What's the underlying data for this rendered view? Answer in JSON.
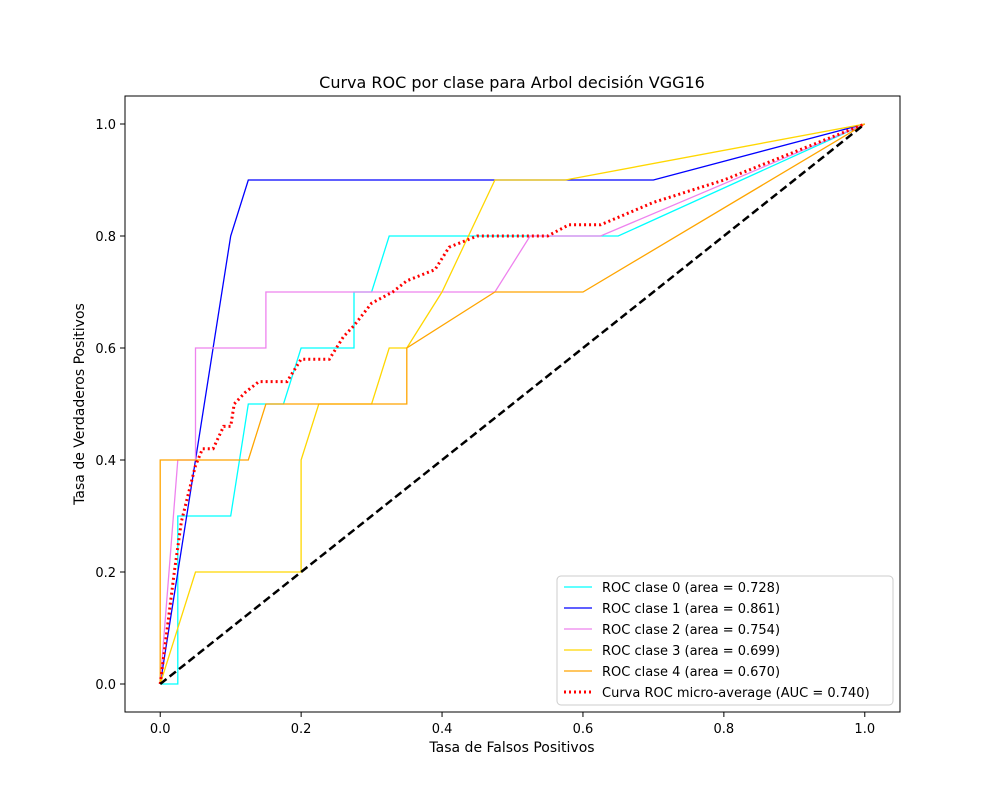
{
  "chart_data": {
    "type": "line",
    "title": "Curva ROC por clase para Arbol decisión VGG16",
    "xlabel": "Tasa de Falsos Positivos",
    "ylabel": "Tasa de Verdaderos Positivos",
    "xlim": [
      -0.05,
      1.05
    ],
    "ylim": [
      -0.05,
      1.05
    ],
    "xticks": [
      0.0,
      0.2,
      0.4,
      0.6,
      0.8,
      1.0
    ],
    "yticks": [
      0.0,
      0.2,
      0.4,
      0.6,
      0.8,
      1.0
    ],
    "xtick_labels": [
      "0.0",
      "0.2",
      "0.4",
      "0.6",
      "0.8",
      "1.0"
    ],
    "ytick_labels": [
      "0.0",
      "0.2",
      "0.4",
      "0.6",
      "0.8",
      "1.0"
    ],
    "grid": false,
    "legend_position": "lower-right",
    "series": [
      {
        "name": "ROC clase 0 (area = 0.728)",
        "color": "#00ffff",
        "style": "solid",
        "x": [
          0.0,
          0.025,
          0.025,
          0.1,
          0.125,
          0.175,
          0.2,
          0.275,
          0.275,
          0.3,
          0.325,
          0.475,
          0.65,
          1.0
        ],
        "y": [
          0.0,
          0.0,
          0.3,
          0.3,
          0.5,
          0.5,
          0.6,
          0.6,
          0.7,
          0.7,
          0.8,
          0.8,
          0.8,
          1.0
        ]
      },
      {
        "name": "ROC clase 1 (area = 0.861)",
        "color": "#0000ff",
        "style": "solid",
        "x": [
          0.0,
          0.05,
          0.1,
          0.125,
          0.7,
          1.0
        ],
        "y": [
          0.0,
          0.4,
          0.8,
          0.9,
          0.9,
          1.0
        ]
      },
      {
        "name": "ROC clase 2 (area = 0.754)",
        "color": "#ee82ee",
        "style": "solid",
        "x": [
          0.0,
          0.025,
          0.025,
          0.05,
          0.05,
          0.15,
          0.15,
          0.475,
          0.525,
          0.625,
          1.0
        ],
        "y": [
          0.0,
          0.4,
          0.4,
          0.4,
          0.6,
          0.6,
          0.7,
          0.7,
          0.8,
          0.8,
          1.0
        ]
      },
      {
        "name": "ROC clase 3 (area = 0.699)",
        "color": "#ffd700",
        "style": "solid",
        "x": [
          0.0,
          0.05,
          0.2,
          0.2,
          0.225,
          0.3,
          0.325,
          0.35,
          0.4,
          0.475,
          0.575,
          1.0
        ],
        "y": [
          0.0,
          0.2,
          0.2,
          0.4,
          0.5,
          0.5,
          0.6,
          0.6,
          0.7,
          0.9,
          0.9,
          1.0
        ]
      },
      {
        "name": "ROC clase 4 (area = 0.670)",
        "color": "#ffa500",
        "style": "solid",
        "x": [
          0.0,
          0.0,
          0.125,
          0.15,
          0.35,
          0.35,
          0.475,
          0.6,
          1.0
        ],
        "y": [
          0.0,
          0.4,
          0.4,
          0.5,
          0.5,
          0.6,
          0.7,
          0.7,
          1.0
        ]
      },
      {
        "name": "Curva ROC micro-average (AUC = 0.740)",
        "color": "#ff0000",
        "style": "dotted",
        "x": [
          0.0,
          0.01,
          0.02,
          0.03,
          0.04,
          0.05,
          0.06,
          0.075,
          0.09,
          0.1,
          0.105,
          0.12,
          0.14,
          0.18,
          0.2,
          0.24,
          0.26,
          0.275,
          0.3,
          0.33,
          0.34,
          0.35,
          0.39,
          0.41,
          0.43,
          0.45,
          0.5,
          0.55,
          0.58,
          0.625,
          0.7,
          0.8,
          0.9,
          1.0
        ],
        "y": [
          0.0,
          0.1,
          0.2,
          0.29,
          0.34,
          0.39,
          0.42,
          0.42,
          0.46,
          0.46,
          0.5,
          0.52,
          0.54,
          0.54,
          0.58,
          0.58,
          0.62,
          0.64,
          0.68,
          0.7,
          0.71,
          0.72,
          0.74,
          0.78,
          0.79,
          0.8,
          0.8,
          0.8,
          0.82,
          0.82,
          0.86,
          0.9,
          0.95,
          1.0
        ]
      }
    ],
    "reference_line": {
      "x": [
        0.0,
        1.0
      ],
      "y": [
        0.0,
        1.0
      ],
      "color": "#000000",
      "style": "dashed"
    }
  }
}
